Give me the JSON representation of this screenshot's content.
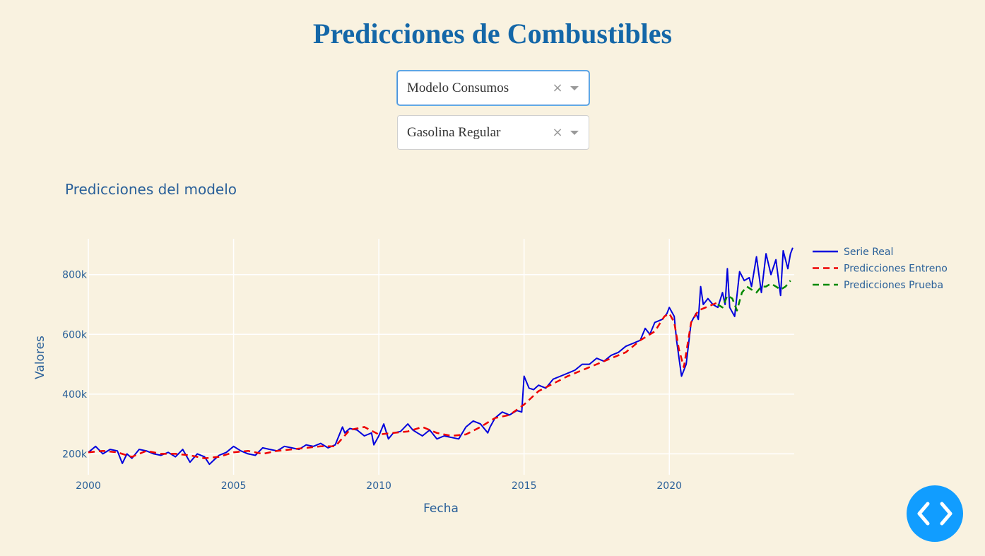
{
  "page": {
    "title": "Predicciones de Combustibles"
  },
  "dropdowns": [
    {
      "value": "Modelo Consumos",
      "clear": "×"
    },
    {
      "value": "Gasolina Regular",
      "clear": "×"
    }
  ],
  "colors": {
    "background": "#f9f2e0",
    "title": "#1467a8",
    "axis_text": "#2a6099",
    "grid": "#ffffff",
    "real": "#0000dd",
    "train": "#ee0000",
    "test": "#008800",
    "fab": "#119dff"
  },
  "fab": {
    "icon": "code-brackets-icon"
  },
  "chart_data": {
    "type": "line",
    "title": "Predicciones del modelo",
    "xlabel": "Fecha",
    "ylabel": "Valores",
    "xlim": [
      2000,
      2024.3
    ],
    "ylim": [
      130000,
      920000
    ],
    "xticks": [
      {
        "value": 2000,
        "label": "2000"
      },
      {
        "value": 2005,
        "label": "2005"
      },
      {
        "value": 2010,
        "label": "2010"
      },
      {
        "value": 2015,
        "label": "2015"
      },
      {
        "value": 2020,
        "label": "2020"
      }
    ],
    "yticks": [
      {
        "value": 200000,
        "label": "200k"
      },
      {
        "value": 400000,
        "label": "400k"
      },
      {
        "value": 600000,
        "label": "600k"
      },
      {
        "value": 800000,
        "label": "800k"
      }
    ],
    "grid": true,
    "legend_position": "top-right",
    "series": [
      {
        "name": "Serie Real",
        "style": "solid",
        "color": "#0000dd",
        "x": [
          2000.0,
          2000.25,
          2000.5,
          2000.75,
          2001.0,
          2001.17,
          2001.33,
          2001.5,
          2001.75,
          2002.0,
          2002.25,
          2002.5,
          2002.75,
          2003.0,
          2003.25,
          2003.5,
          2003.75,
          2004.0,
          2004.17,
          2004.33,
          2004.5,
          2004.75,
          2005.0,
          2005.25,
          2005.5,
          2005.75,
          2006.0,
          2006.25,
          2006.5,
          2006.75,
          2007.0,
          2007.25,
          2007.5,
          2007.75,
          2008.0,
          2008.25,
          2008.5,
          2008.75,
          2008.83,
          2009.0,
          2009.25,
          2009.5,
          2009.75,
          2009.83,
          2010.0,
          2010.17,
          2010.33,
          2010.5,
          2010.75,
          2011.0,
          2011.17,
          2011.33,
          2011.5,
          2011.75,
          2012.0,
          2012.25,
          2012.5,
          2012.75,
          2013.0,
          2013.25,
          2013.5,
          2013.75,
          2013.83,
          2014.0,
          2014.25,
          2014.5,
          2014.75,
          2014.92,
          2015.0,
          2015.17,
          2015.33,
          2015.5,
          2015.75,
          2016.0,
          2016.25,
          2016.5,
          2016.75,
          2017.0,
          2017.25,
          2017.5,
          2017.75,
          2018.0,
          2018.25,
          2018.5,
          2018.75,
          2019.0,
          2019.17,
          2019.33,
          2019.5,
          2019.75,
          2019.92,
          2020.0,
          2020.17,
          2020.25,
          2020.42,
          2020.58,
          2020.75,
          2020.92,
          2021.0,
          2021.08,
          2021.17,
          2021.33,
          2021.5,
          2021.67,
          2021.83,
          2021.92,
          2022.0,
          2022.08,
          2022.25,
          2022.42,
          2022.58,
          2022.75,
          2022.83,
          2023.0,
          2023.17,
          2023.33,
          2023.5,
          2023.67,
          2023.83,
          2023.92,
          2024.08,
          2024.17,
          2024.25
        ],
        "y": [
          205000,
          225000,
          200000,
          215000,
          210000,
          168000,
          200000,
          185000,
          215000,
          210000,
          200000,
          195000,
          205000,
          190000,
          215000,
          172000,
          200000,
          190000,
          165000,
          180000,
          195000,
          205000,
          225000,
          210000,
          200000,
          195000,
          220000,
          215000,
          210000,
          225000,
          220000,
          215000,
          230000,
          225000,
          235000,
          220000,
          230000,
          290000,
          270000,
          285000,
          280000,
          260000,
          270000,
          230000,
          260000,
          300000,
          250000,
          270000,
          275000,
          300000,
          280000,
          270000,
          260000,
          280000,
          250000,
          260000,
          255000,
          250000,
          290000,
          310000,
          300000,
          270000,
          290000,
          320000,
          340000,
          330000,
          345000,
          340000,
          460000,
          420000,
          415000,
          430000,
          420000,
          450000,
          460000,
          470000,
          480000,
          500000,
          500000,
          520000,
          510000,
          530000,
          540000,
          560000,
          570000,
          580000,
          620000,
          600000,
          640000,
          650000,
          670000,
          690000,
          660000,
          580000,
          460000,
          500000,
          640000,
          670000,
          650000,
          760000,
          700000,
          720000,
          700000,
          690000,
          740000,
          700000,
          820000,
          690000,
          660000,
          810000,
          780000,
          790000,
          760000,
          860000,
          740000,
          870000,
          800000,
          850000,
          730000,
          880000,
          820000,
          870000,
          890000
        ]
      },
      {
        "name": "Predicciones Entreno",
        "style": "dash",
        "color": "#ee0000",
        "x": [
          2000.0,
          2000.5,
          2001.0,
          2001.5,
          2002.0,
          2002.5,
          2003.0,
          2003.5,
          2004.0,
          2004.5,
          2005.0,
          2005.5,
          2006.0,
          2006.5,
          2007.0,
          2007.5,
          2008.0,
          2008.5,
          2009.0,
          2009.5,
          2010.0,
          2010.5,
          2011.0,
          2011.5,
          2012.0,
          2012.5,
          2013.0,
          2013.5,
          2014.0,
          2014.5,
          2015.0,
          2015.5,
          2016.0,
          2016.5,
          2017.0,
          2017.5,
          2018.0,
          2018.5,
          2019.0,
          2019.5,
          2019.83,
          2020.0,
          2020.17,
          2020.33,
          2020.5,
          2020.75,
          2021.0,
          2021.5,
          2021.75
        ],
        "y": [
          205000,
          210000,
          205000,
          190000,
          210000,
          200000,
          200000,
          195000,
          185000,
          190000,
          205000,
          210000,
          200000,
          210000,
          215000,
          220000,
          225000,
          225000,
          280000,
          290000,
          265000,
          270000,
          275000,
          290000,
          270000,
          260000,
          265000,
          290000,
          320000,
          330000,
          365000,
          410000,
          435000,
          460000,
          480000,
          500000,
          520000,
          540000,
          580000,
          610000,
          660000,
          670000,
          640000,
          550000,
          490000,
          640000,
          680000,
          700000,
          710000
        ]
      },
      {
        "name": "Predicciones Prueba",
        "style": "dash",
        "color": "#008800",
        "x": [
          2021.67,
          2021.83,
          2022.0,
          2022.17,
          2022.33,
          2022.5,
          2022.67,
          2022.83,
          2023.0,
          2023.17,
          2023.33,
          2023.5,
          2023.67,
          2023.83,
          2024.0,
          2024.17
        ],
        "y": [
          700000,
          690000,
          730000,
          720000,
          680000,
          740000,
          760000,
          750000,
          740000,
          760000,
          760000,
          770000,
          760000,
          750000,
          760000,
          780000
        ]
      }
    ]
  }
}
